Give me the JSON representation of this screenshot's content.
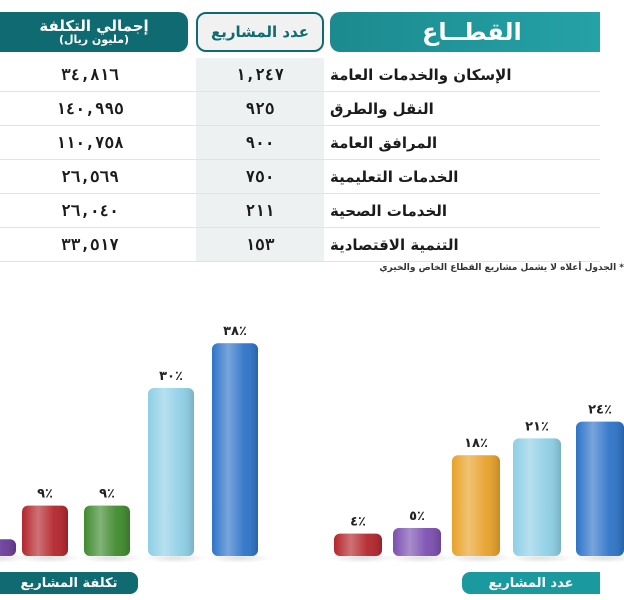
{
  "table": {
    "header_cost": "إجمالي التكلفة",
    "header_cost_sub": "(مليون ريال)",
    "header_count": "عدد المشاريع",
    "header_sector": "القطــاع",
    "rows": [
      {
        "sector": "الإسكان والخدمات العامة",
        "count": "١,٢٤٧",
        "cost": "٣٤,٨١٦"
      },
      {
        "sector": "النقل والطرق",
        "count": "٩٢٥",
        "cost": "١٤٠,٩٩٥"
      },
      {
        "sector": "المرافق العامة",
        "count": "٩٠٠",
        "cost": "١١٠,٧٥٨"
      },
      {
        "sector": "الخدمات التعليمية",
        "count": "٧٥٠",
        "cost": "٢٦,٥٦٩"
      },
      {
        "sector": "الخدمات الصحية",
        "count": "٢١١",
        "cost": "٢٦,٠٤٠"
      },
      {
        "sector": "التنمية الاقتصادية",
        "count": "١٥٣",
        "cost": "٣٣,٥١٧"
      }
    ],
    "note": "* الجدول أعلاه لا يشمل مشاريع القطاع الخاص والخيري"
  },
  "chart_data": [
    {
      "type": "bar",
      "title": "تكلفة المشاريع",
      "values": [
        3,
        9,
        9,
        30,
        38
      ],
      "labels": [
        "",
        "٩٪",
        "٩٪",
        "٣٠٪",
        "٣٨٪"
      ],
      "colors": [
        "#6a3d9a",
        "#b3262c",
        "#3f8a2e",
        "#8ecfe6",
        "#2e74c8"
      ],
      "ylim": [
        0,
        40
      ]
    },
    {
      "type": "bar",
      "title": "عدد المشاريع",
      "values": [
        4,
        5,
        18,
        21,
        24
      ],
      "labels": [
        "٤٪",
        "٥٪",
        "١٨٪",
        "٢١٪",
        "٢٤٪"
      ],
      "colors": [
        "#b3262c",
        "#7b4fb0",
        "#e8a12a",
        "#8ecfe6",
        "#2e74c8"
      ],
      "ylim": [
        0,
        40
      ]
    }
  ]
}
